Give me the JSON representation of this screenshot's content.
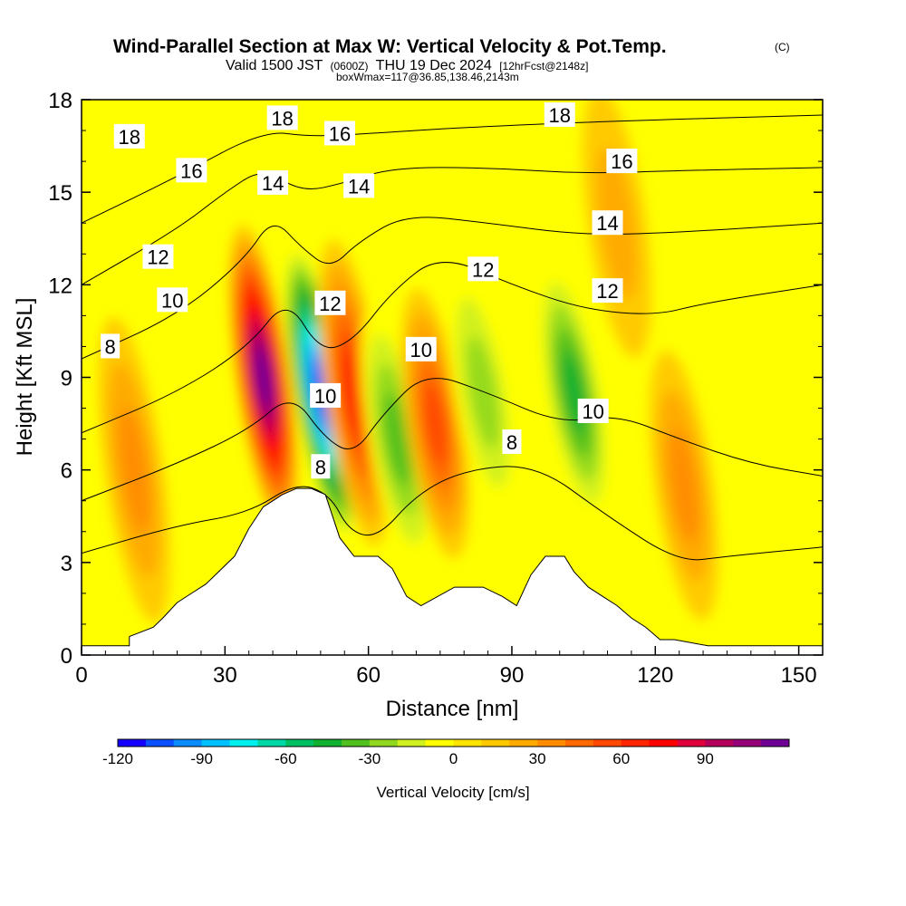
{
  "chart_data": {
    "type": "heatmap",
    "title": "Wind-Parallel Section at Max W: Vertical Velocity & Pot.Temp.",
    "title_mark": "(C)",
    "subtitle_parts": [
      "Valid 1500 JST",
      "(0600Z)",
      "THU 19 Dec 2024",
      "[12hrFcst@2148z]"
    ],
    "subtitle2": "boxWmax=117@36.85,138.46,2143m",
    "xlabel": "Distance [nm]",
    "ylabel": "Height [Kft MSL]",
    "xlim": [
      0,
      155
    ],
    "ylim": [
      0,
      18
    ],
    "x_ticks": [
      "0",
      "30",
      "60",
      "90",
      "120",
      "150"
    ],
    "y_ticks": [
      "0",
      "3",
      "6",
      "9",
      "12",
      "15",
      "18"
    ],
    "colorbar": {
      "label": "Vertical Velocity [cm/s]",
      "tick_labels": [
        "-120",
        "-90",
        "-60",
        "-30",
        "0",
        "30",
        "60",
        "90"
      ],
      "colors": [
        "#1400ff",
        "#0a50ff",
        "#0a8cff",
        "#00c0ff",
        "#00f0f0",
        "#00d8a8",
        "#00c064",
        "#10b030",
        "#50c020",
        "#90d820",
        "#d0f020",
        "#ffff00",
        "#ffe400",
        "#ffc800",
        "#ffaa00",
        "#ff8c00",
        "#ff6a00",
        "#ff4800",
        "#ff2400",
        "#ff0000",
        "#e0003c",
        "#b4005a",
        "#960078",
        "#6e0096"
      ]
    },
    "terrain": {
      "x": [
        0,
        10,
        10,
        15,
        17,
        20,
        23,
        26,
        32,
        35,
        38,
        42,
        45,
        48,
        51,
        54,
        57,
        62,
        65,
        68,
        71,
        78,
        84,
        88,
        91,
        94,
        97,
        101,
        103,
        106,
        109,
        112,
        115,
        118,
        121,
        124,
        131,
        134,
        155
      ],
      "z": [
        0.3,
        0.3,
        0.6,
        0.9,
        1.2,
        1.7,
        2.0,
        2.3,
        3.2,
        4.1,
        4.8,
        5.2,
        5.4,
        5.4,
        5.2,
        3.8,
        3.2,
        3.2,
        2.8,
        1.9,
        1.6,
        2.2,
        2.2,
        1.9,
        1.6,
        2.6,
        3.2,
        3.2,
        2.7,
        2.2,
        1.9,
        1.6,
        1.2,
        0.9,
        0.5,
        0.5,
        0.3,
        0.3,
        0.3
      ]
    },
    "w_features": [
      {
        "x": 38,
        "z": 9.0,
        "value": 117
      },
      {
        "x": 50,
        "z": 8.5,
        "value": -117
      },
      {
        "x": 57,
        "z": 8.5,
        "value": 60
      },
      {
        "x": 66,
        "z": 7.0,
        "value": -45
      },
      {
        "x": 74,
        "z": 7.5,
        "value": 55
      },
      {
        "x": 84,
        "z": 8.5,
        "value": -35
      },
      {
        "x": 103,
        "z": 8.5,
        "value": -50
      },
      {
        "x": 11,
        "z": 6.0,
        "value": 30
      },
      {
        "x": 126,
        "z": 5.5,
        "value": 35
      },
      {
        "x": 112,
        "z": 14.0,
        "value": 25
      }
    ],
    "theta_contours": [
      {
        "label": "8",
        "points": [
          [
            0,
            3.3
          ],
          [
            20,
            4.2
          ],
          [
            35,
            4.6
          ],
          [
            45,
            5.6
          ],
          [
            52,
            5.2
          ],
          [
            56,
            4.0
          ],
          [
            62,
            3.8
          ],
          [
            70,
            5.2
          ],
          [
            80,
            6.0
          ],
          [
            95,
            6.2
          ],
          [
            110,
            4.5
          ],
          [
            125,
            3.0
          ],
          [
            135,
            3.2
          ],
          [
            155,
            3.5
          ]
        ]
      },
      {
        "label": "10",
        "points": [
          [
            0,
            5.0
          ],
          [
            20,
            6.2
          ],
          [
            35,
            7.3
          ],
          [
            44,
            8.5
          ],
          [
            51,
            7.0
          ],
          [
            57,
            6.5
          ],
          [
            63,
            7.8
          ],
          [
            72,
            9.2
          ],
          [
            85,
            8.5
          ],
          [
            100,
            7.5
          ],
          [
            112,
            7.8
          ],
          [
            125,
            7.0
          ],
          [
            140,
            6.2
          ],
          [
            155,
            5.8
          ]
        ]
      },
      {
        "label": "12",
        "points": [
          [
            0,
            7.2
          ],
          [
            20,
            8.5
          ],
          [
            35,
            10.0
          ],
          [
            43,
            11.6
          ],
          [
            50,
            9.8
          ],
          [
            57,
            10.2
          ],
          [
            65,
            11.8
          ],
          [
            75,
            13.0
          ],
          [
            90,
            12.0
          ],
          [
            105,
            11.2
          ],
          [
            120,
            11.0
          ],
          [
            130,
            11.4
          ],
          [
            155,
            12.0
          ]
        ]
      },
      {
        "label": "14",
        "points": [
          [
            0,
            9.6
          ],
          [
            20,
            11.0
          ],
          [
            34,
            12.8
          ],
          [
            40,
            14.2
          ],
          [
            46,
            13.2
          ],
          [
            52,
            12.5
          ],
          [
            58,
            13.4
          ],
          [
            68,
            14.3
          ],
          [
            85,
            14.0
          ],
          [
            105,
            13.6
          ],
          [
            125,
            13.7
          ],
          [
            155,
            14.0
          ]
        ]
      },
      {
        "label": "16",
        "points": [
          [
            0,
            12.0
          ],
          [
            20,
            13.8
          ],
          [
            30,
            15.0
          ],
          [
            38,
            15.8
          ],
          [
            46,
            15.0
          ],
          [
            55,
            15.3
          ],
          [
            65,
            15.8
          ],
          [
            85,
            15.8
          ],
          [
            105,
            15.6
          ],
          [
            125,
            15.7
          ],
          [
            155,
            15.8
          ]
        ]
      },
      {
        "label": "18",
        "points": [
          [
            0,
            14.0
          ],
          [
            20,
            15.5
          ],
          [
            38,
            17.0
          ],
          [
            48,
            16.8
          ],
          [
            60,
            16.9
          ],
          [
            80,
            17.1
          ],
          [
            110,
            17.3
          ],
          [
            155,
            17.5
          ]
        ]
      }
    ],
    "contour_labels": [
      {
        "text": "18",
        "x": 10,
        "z": 16.8
      },
      {
        "text": "16",
        "x": 23,
        "z": 15.7
      },
      {
        "text": "14",
        "x": 40,
        "z": 15.3
      },
      {
        "text": "12",
        "x": 16,
        "z": 12.9
      },
      {
        "text": "10",
        "x": 19,
        "z": 11.5
      },
      {
        "text": "8",
        "x": 6,
        "z": 10.0
      },
      {
        "text": "18",
        "x": 42,
        "z": 17.4
      },
      {
        "text": "16",
        "x": 54,
        "z": 16.9
      },
      {
        "text": "14",
        "x": 58,
        "z": 15.2
      },
      {
        "text": "12",
        "x": 52,
        "z": 11.4
      },
      {
        "text": "10",
        "x": 51,
        "z": 8.4
      },
      {
        "text": "8",
        "x": 50,
        "z": 6.1
      },
      {
        "text": "12",
        "x": 84,
        "z": 12.5
      },
      {
        "text": "10",
        "x": 71,
        "z": 9.9
      },
      {
        "text": "8",
        "x": 90,
        "z": 6.9
      },
      {
        "text": "18",
        "x": 100,
        "z": 17.5
      },
      {
        "text": "16",
        "x": 113,
        "z": 16.0
      },
      {
        "text": "14",
        "x": 110,
        "z": 14.0
      },
      {
        "text": "12",
        "x": 110,
        "z": 11.8
      },
      {
        "text": "10",
        "x": 107,
        "z": 7.9
      }
    ]
  }
}
